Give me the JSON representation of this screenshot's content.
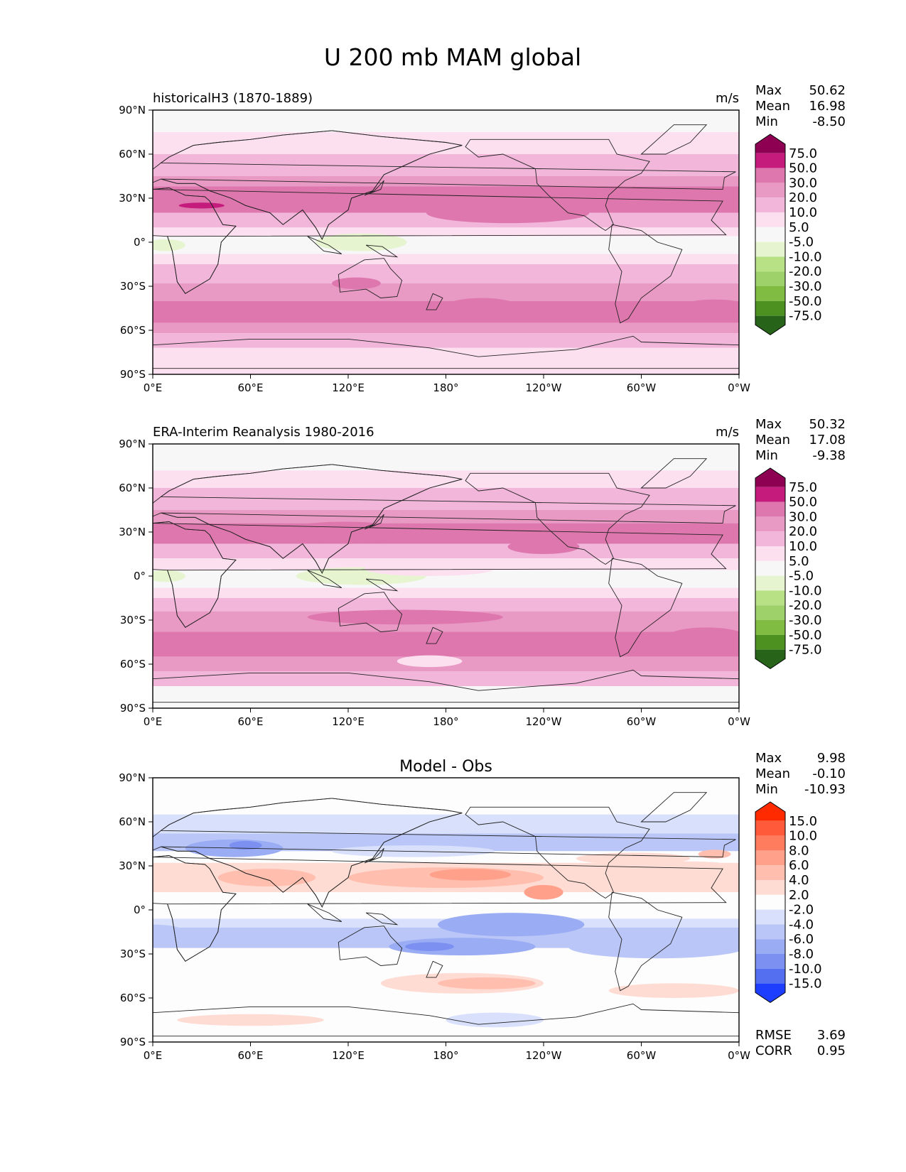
{
  "figure": {
    "title": "U 200 mb MAM global"
  },
  "chart_data": [
    {
      "type": "heatmap",
      "panel": "model",
      "title": "historicalH3 (1870-1889)",
      "units": "m/s",
      "xticks": [
        "0°E",
        "60°E",
        "120°E",
        "180°",
        "120°W",
        "60°W",
        "0°W"
      ],
      "yticks": [
        "90°N",
        "60°N",
        "30°N",
        "0°",
        "30°S",
        "60°S",
        "90°S"
      ],
      "xlim": [
        0,
        360
      ],
      "ylim": [
        -90,
        90
      ],
      "stats": [
        {
          "label": "Max",
          "value": "50.62"
        },
        {
          "label": "Mean",
          "value": "16.98"
        },
        {
          "label": "Min",
          "value": "-8.50"
        }
      ],
      "colorbar": {
        "levels": [
          "75.0",
          "50.0",
          "30.0",
          "20.0",
          "10.0",
          "5.0",
          "-5.0",
          "-10.0",
          "-20.0",
          "-30.0",
          "-50.0",
          "-75.0"
        ],
        "colors": [
          "#8e0152",
          "#c51b7d",
          "#de77ae",
          "#e99ac4",
          "#f1b6da",
          "#fde0ef",
          "#f7f7f7",
          "#e6f5d0",
          "#b8e186",
          "#9ed16a",
          "#7fbc41",
          "#4d9221",
          "#276419"
        ]
      },
      "bands": [
        {
          "lat_top": 90,
          "lat_bottom": 75,
          "value": 0
        },
        {
          "lat_top": 75,
          "lat_bottom": 60,
          "value": 7
        },
        {
          "lat_top": 60,
          "lat_bottom": 45,
          "value": 15
        },
        {
          "lat_top": 45,
          "lat_bottom": 38,
          "value": 22
        },
        {
          "lat_top": 38,
          "lat_bottom": 20,
          "value": 38
        },
        {
          "lat_top": 20,
          "lat_bottom": 10,
          "value": 15
        },
        {
          "lat_top": 10,
          "lat_bottom": 4,
          "value": 7
        },
        {
          "lat_top": 4,
          "lat_bottom": -8,
          "value": 0
        },
        {
          "lat_top": -8,
          "lat_bottom": -15,
          "value": 7
        },
        {
          "lat_top": -15,
          "lat_bottom": -28,
          "value": 15
        },
        {
          "lat_top": -28,
          "lat_bottom": -40,
          "value": 22
        },
        {
          "lat_top": -40,
          "lat_bottom": -55,
          "value": 38
        },
        {
          "lat_top": -55,
          "lat_bottom": -62,
          "value": 22
        },
        {
          "lat_top": -62,
          "lat_bottom": -72,
          "value": 15
        },
        {
          "lat_top": -72,
          "lat_bottom": -90,
          "value": 7
        }
      ],
      "blobs": [
        {
          "lon": 30,
          "lat": 25,
          "rlon": 14,
          "rlat": 2,
          "value": 55
        },
        {
          "lon": 128,
          "lat": 0,
          "rlon": 28,
          "rlat": 6,
          "value": -7
        },
        {
          "lon": 8,
          "lat": -2,
          "rlon": 12,
          "rlat": 4,
          "value": -7
        },
        {
          "lon": 218,
          "lat": 20,
          "rlon": 50,
          "rlat": 7,
          "value": 38
        },
        {
          "lon": 202,
          "lat": -45,
          "rlon": 24,
          "rlat": 7,
          "value": 38
        },
        {
          "lon": 345,
          "lat": -45,
          "rlon": 22,
          "rlat": 6,
          "value": 38
        },
        {
          "lon": 125,
          "lat": -28,
          "rlon": 15,
          "rlat": 4,
          "value": 38
        }
      ]
    },
    {
      "type": "heatmap",
      "panel": "obs",
      "title": "ERA-Interim Reanalysis 1980-2016",
      "units": "m/s",
      "xticks": [
        "0°E",
        "60°E",
        "120°E",
        "180°",
        "120°W",
        "60°W",
        "0°W"
      ],
      "yticks": [
        "90°N",
        "60°N",
        "30°N",
        "0°",
        "30°S",
        "60°S",
        "90°S"
      ],
      "xlim": [
        0,
        360
      ],
      "ylim": [
        -90,
        90
      ],
      "stats": [
        {
          "label": "Max",
          "value": "50.32"
        },
        {
          "label": "Mean",
          "value": "17.08"
        },
        {
          "label": "Min",
          "value": "-9.38"
        }
      ],
      "colorbar": {
        "levels": [
          "75.0",
          "50.0",
          "30.0",
          "20.0",
          "10.0",
          "5.0",
          "-5.0",
          "-10.0",
          "-20.0",
          "-30.0",
          "-50.0",
          "-75.0"
        ],
        "colors": [
          "#8e0152",
          "#c51b7d",
          "#de77ae",
          "#e99ac4",
          "#f1b6da",
          "#fde0ef",
          "#f7f7f7",
          "#e6f5d0",
          "#b8e186",
          "#9ed16a",
          "#7fbc41",
          "#4d9221",
          "#276419"
        ]
      },
      "bands": [
        {
          "lat_top": 90,
          "lat_bottom": 72,
          "value": 0
        },
        {
          "lat_top": 72,
          "lat_bottom": 60,
          "value": 7
        },
        {
          "lat_top": 60,
          "lat_bottom": 45,
          "value": 15
        },
        {
          "lat_top": 45,
          "lat_bottom": 36,
          "value": 22
        },
        {
          "lat_top": 36,
          "lat_bottom": 22,
          "value": 38
        },
        {
          "lat_top": 22,
          "lat_bottom": 12,
          "value": 15
        },
        {
          "lat_top": 12,
          "lat_bottom": 4,
          "value": 7
        },
        {
          "lat_top": 4,
          "lat_bottom": -8,
          "value": 0
        },
        {
          "lat_top": -8,
          "lat_bottom": -15,
          "value": 7
        },
        {
          "lat_top": -15,
          "lat_bottom": -24,
          "value": 15
        },
        {
          "lat_top": -24,
          "lat_bottom": -38,
          "value": 22
        },
        {
          "lat_top": -38,
          "lat_bottom": -55,
          "value": 38
        },
        {
          "lat_top": -55,
          "lat_bottom": -65,
          "value": 22
        },
        {
          "lat_top": -65,
          "lat_bottom": -75,
          "value": 15
        },
        {
          "lat_top": -75,
          "lat_bottom": -90,
          "value": 0
        }
      ],
      "blobs": [
        {
          "lon": 118,
          "lat": 30,
          "rlon": 40,
          "rlat": 7,
          "value": 38
        },
        {
          "lon": 128,
          "lat": 0,
          "rlon": 40,
          "rlat": 6,
          "value": -7
        },
        {
          "lon": 8,
          "lat": 0,
          "rlon": 12,
          "rlat": 4,
          "value": -7
        },
        {
          "lon": 240,
          "lat": 20,
          "rlon": 22,
          "rlat": 5,
          "value": 38
        },
        {
          "lon": 155,
          "lat": -28,
          "rlon": 60,
          "rlat": 5,
          "value": 38
        },
        {
          "lon": 170,
          "lat": -58,
          "rlon": 20,
          "rlat": 4,
          "value": 7
        },
        {
          "lon": 340,
          "lat": -42,
          "rlon": 25,
          "rlat": 7,
          "value": 38
        },
        {
          "lon": 170,
          "lat": 5,
          "rlon": 40,
          "rlat": 5,
          "value": 7
        }
      ]
    },
    {
      "type": "heatmap",
      "panel": "diff",
      "title": "Model - Obs",
      "units": "",
      "xticks": [
        "0°E",
        "60°E",
        "120°E",
        "180°",
        "120°W",
        "60°W",
        "0°W"
      ],
      "yticks": [
        "90°N",
        "60°N",
        "30°N",
        "0°",
        "30°S",
        "60°S",
        "90°S"
      ],
      "xlim": [
        0,
        360
      ],
      "ylim": [
        -90,
        90
      ],
      "stats": [
        {
          "label": "Max",
          "value": "9.98"
        },
        {
          "label": "Mean",
          "value": "-0.10"
        },
        {
          "label": "Min",
          "value": "-10.93"
        }
      ],
      "metrics": [
        {
          "label": "RMSE",
          "value": "3.69"
        },
        {
          "label": "CORR",
          "value": "0.95"
        }
      ],
      "colorbar": {
        "levels": [
          "15.0",
          "10.0",
          "8.0",
          "6.0",
          "4.0",
          "2.0",
          "-2.0",
          "-4.0",
          "-6.0",
          "-8.0",
          "-10.0",
          "-15.0"
        ],
        "colors": [
          "#ff2a00",
          "#ff5a3a",
          "#ff7d5e",
          "#ffa08a",
          "#ffbeae",
          "#ffdcd3",
          "#fdfdfd",
          "#d8e0fb",
          "#b9c6f7",
          "#9aacf3",
          "#7b90f0",
          "#5470f0",
          "#1d3dff"
        ]
      },
      "bands": [
        {
          "lat_top": 90,
          "lat_bottom": 65,
          "value": 0
        },
        {
          "lat_top": 65,
          "lat_bottom": 52,
          "value": -3
        },
        {
          "lat_top": 52,
          "lat_bottom": 40,
          "value": -5
        },
        {
          "lat_top": 40,
          "lat_bottom": 32,
          "value": -1
        },
        {
          "lat_top": 32,
          "lat_bottom": 12,
          "value": 3
        },
        {
          "lat_top": 12,
          "lat_bottom": -6,
          "value": 0
        },
        {
          "lat_top": -6,
          "lat_bottom": -12,
          "value": -3
        },
        {
          "lat_top": -12,
          "lat_bottom": -26,
          "value": -5
        },
        {
          "lat_top": -26,
          "lat_bottom": -34,
          "value": -1
        },
        {
          "lat_top": -34,
          "lat_bottom": -55,
          "value": 0
        },
        {
          "lat_top": -55,
          "lat_bottom": -90,
          "value": 0
        }
      ],
      "blobs": [
        {
          "lon": 50,
          "lat": 42,
          "rlon": 30,
          "rlat": 6,
          "value": -7
        },
        {
          "lon": 57,
          "lat": 44,
          "rlon": 10,
          "rlat": 3,
          "value": -9
        },
        {
          "lon": 160,
          "lat": 40,
          "rlon": 50,
          "rlat": 4,
          "value": -3
        },
        {
          "lon": 70,
          "lat": 22,
          "rlon": 30,
          "rlat": 6,
          "value": 5
        },
        {
          "lon": 180,
          "lat": 22,
          "rlon": 60,
          "rlat": 7,
          "value": 5
        },
        {
          "lon": 195,
          "lat": 24,
          "rlon": 25,
          "rlat": 4,
          "value": 7
        },
        {
          "lon": 240,
          "lat": 12,
          "rlon": 12,
          "rlat": 5,
          "value": 7
        },
        {
          "lon": 220,
          "lat": -10,
          "rlon": 45,
          "rlat": 8,
          "value": -7
        },
        {
          "lon": 190,
          "lat": -25,
          "rlon": 45,
          "rlat": 6,
          "value": -7
        },
        {
          "lon": 170,
          "lat": -25,
          "rlon": 15,
          "rlat": 3,
          "value": -9
        },
        {
          "lon": 190,
          "lat": -50,
          "rlon": 50,
          "rlat": 7,
          "value": 3
        },
        {
          "lon": 205,
          "lat": -50,
          "rlon": 30,
          "rlat": 4,
          "value": 5
        },
        {
          "lon": 310,
          "lat": -25,
          "rlon": 55,
          "rlat": 8,
          "value": -5
        },
        {
          "lon": 330,
          "lat": 25,
          "rlon": 40,
          "rlat": 8,
          "value": 3
        },
        {
          "lon": 295,
          "lat": 35,
          "rlon": 35,
          "rlat": 4,
          "value": 3
        },
        {
          "lon": 345,
          "lat": 38,
          "rlon": 10,
          "rlat": 3,
          "value": 5
        },
        {
          "lon": 210,
          "lat": -75,
          "rlon": 30,
          "rlat": 5,
          "value": -3
        },
        {
          "lon": 60,
          "lat": -75,
          "rlon": 45,
          "rlat": 4,
          "value": 3
        },
        {
          "lon": 320,
          "lat": -55,
          "rlon": 40,
          "rlat": 5,
          "value": 3
        },
        {
          "lon": 0,
          "lat": -15,
          "rlon": 20,
          "rlat": 5,
          "value": -5
        }
      ]
    }
  ]
}
